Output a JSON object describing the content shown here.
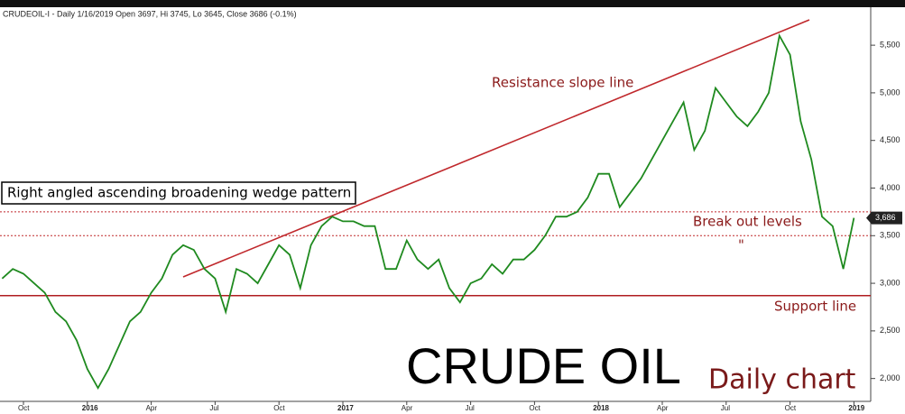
{
  "chart_data": {
    "type": "line",
    "title": "CRUDEOIL-I - Daily 1/16/2019 Open 3697, Hi 3745, Lo 3645, Close 3686 (-0.1%)",
    "heading": "CRUDE OIL",
    "subheading": "Daily chart",
    "annotations": {
      "pattern": "Right angled ascending broadening wedge pattern",
      "resistance": "Resistance slope line",
      "breakout": "Break out levels",
      "ditto": "\"",
      "support": "Support line"
    },
    "categories": [
      null,
      null,
      "Oct",
      null,
      null,
      null,
      null,
      null,
      "2016",
      null,
      null,
      null,
      null,
      null,
      "Apr",
      null,
      null,
      null,
      null,
      null,
      "Jul",
      null,
      null,
      null,
      null,
      null,
      "Oct",
      null,
      null,
      null,
      null,
      null,
      "2017",
      null,
      null,
      null,
      null,
      null,
      "Apr",
      null,
      null,
      null,
      null,
      null,
      "Jul",
      null,
      null,
      null,
      null,
      null,
      "Oct",
      null,
      null,
      null,
      null,
      null,
      "2018",
      null,
      null,
      null,
      null,
      null,
      "Apr",
      null,
      null,
      null,
      null,
      null,
      "Jul",
      null,
      null,
      null,
      null,
      null,
      "Oct",
      null,
      null,
      null,
      null,
      null,
      "2019"
    ],
    "series": [
      {
        "name": "CRUDEOIL-I",
        "color": "#1f8a1f",
        "values": [
          3050,
          3150,
          3100,
          3000,
          2900,
          2700,
          2600,
          2400,
          2100,
          1900,
          2100,
          2350,
          2600,
          2700,
          2900,
          3050,
          3300,
          3400,
          3350,
          3150,
          3050,
          2700,
          3150,
          3100,
          3000,
          3200,
          3400,
          3300,
          2950,
          3400,
          3600,
          3700,
          3650,
          3650,
          3600,
          3600,
          3150,
          3150,
          3450,
          3250,
          3150,
          3250,
          2950,
          2800,
          3000,
          3050,
          3200,
          3100,
          3250,
          3250,
          3350,
          3500,
          3700,
          3700,
          3750,
          3900,
          4150,
          4150,
          3800,
          3950,
          4100,
          4300,
          4500,
          4700,
          4900,
          4400,
          4600,
          5050,
          4900,
          4750,
          4650,
          4800,
          5000,
          5600,
          5400,
          4700,
          4300,
          3700,
          3600,
          3150,
          3686
        ]
      }
    ],
    "last_price": {
      "value": 3686,
      "label": "3,686"
    },
    "breakout_levels": [
      3750,
      3500
    ],
    "support_level": 2870,
    "ylim": [
      1760,
      5880
    ],
    "yticks": [
      {
        "value": 2000,
        "label": "2,000"
      },
      {
        "value": 2500,
        "label": "2,500"
      },
      {
        "value": 3000,
        "label": "3,000"
      },
      {
        "value": 3500,
        "label": "3,500"
      },
      {
        "value": 4000,
        "label": "4,000"
      },
      {
        "value": 4500,
        "label": "4,500"
      },
      {
        "value": 5000,
        "label": "5,000"
      },
      {
        "value": 5500,
        "label": "5,500"
      }
    ]
  }
}
